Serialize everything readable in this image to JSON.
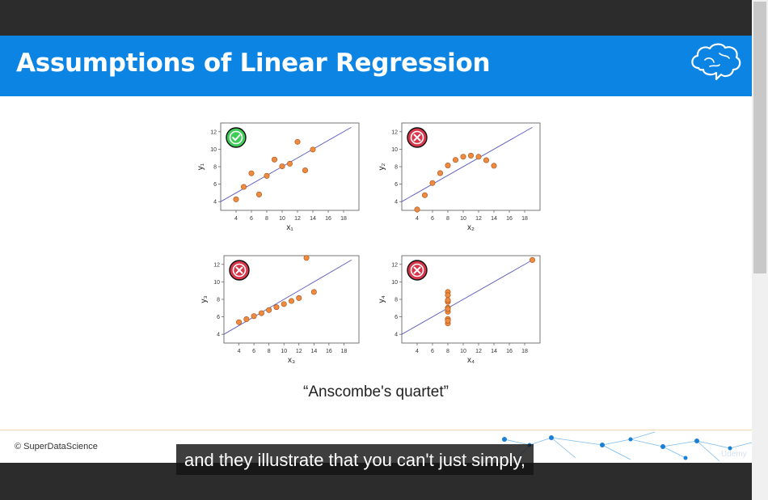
{
  "slide": {
    "title": "Assumptions of Linear Regression",
    "caption": "“Anscombe's quartet”",
    "copyright": "© SuperDataScience"
  },
  "video": {
    "subtitle": "and they illustrate that you can't just simply,",
    "watermark": "Udemy"
  },
  "colors": {
    "accent": "#0b84e3",
    "point": "#f08a3c",
    "fit": "#5c5cc0",
    "ok": "#3dcc55",
    "bad": "#d9364a"
  },
  "chart_data": [
    {
      "type": "scatter",
      "status": "check-icon",
      "xlabel": "x1",
      "ylabel": "y1",
      "xticks": [
        4,
        6,
        8,
        10,
        12,
        14,
        16,
        18
      ],
      "yticks": [
        4,
        6,
        8,
        10,
        12
      ],
      "xlim": [
        2,
        20
      ],
      "ylim": [
        3,
        13
      ],
      "fit": [
        [
          2,
          4.0
        ],
        [
          19,
          12.5
        ]
      ],
      "points": [
        [
          4,
          4.26
        ],
        [
          5,
          5.68
        ],
        [
          6,
          7.24
        ],
        [
          7,
          4.82
        ],
        [
          8,
          6.95
        ],
        [
          9,
          8.81
        ],
        [
          10,
          8.04
        ],
        [
          11,
          8.33
        ],
        [
          12,
          10.84
        ],
        [
          13,
          7.58
        ],
        [
          14,
          9.96
        ]
      ]
    },
    {
      "type": "scatter",
      "status": "cross-icon",
      "xlabel": "x2",
      "ylabel": "y2",
      "xticks": [
        4,
        6,
        8,
        10,
        12,
        14,
        16,
        18
      ],
      "yticks": [
        4,
        6,
        8,
        10,
        12
      ],
      "xlim": [
        2,
        20
      ],
      "ylim": [
        3,
        13
      ],
      "fit": [
        [
          2,
          4.0
        ],
        [
          19,
          12.5
        ]
      ],
      "points": [
        [
          4,
          3.1
        ],
        [
          5,
          4.74
        ],
        [
          6,
          6.13
        ],
        [
          7,
          7.26
        ],
        [
          8,
          8.14
        ],
        [
          9,
          8.77
        ],
        [
          10,
          9.14
        ],
        [
          11,
          9.26
        ],
        [
          12,
          9.13
        ],
        [
          13,
          8.74
        ],
        [
          14,
          8.1
        ]
      ]
    },
    {
      "type": "scatter",
      "status": "cross-icon",
      "xlabel": "x3",
      "ylabel": "y3",
      "xticks": [
        4,
        6,
        8,
        10,
        12,
        14,
        16,
        18
      ],
      "yticks": [
        4,
        6,
        8,
        10,
        12
      ],
      "xlim": [
        2,
        20
      ],
      "ylim": [
        3,
        13
      ],
      "fit": [
        [
          2,
          4.0
        ],
        [
          19,
          12.5
        ]
      ],
      "points": [
        [
          4,
          5.39
        ],
        [
          5,
          5.73
        ],
        [
          6,
          6.08
        ],
        [
          7,
          6.42
        ],
        [
          8,
          6.77
        ],
        [
          9,
          7.11
        ],
        [
          10,
          7.46
        ],
        [
          11,
          7.81
        ],
        [
          12,
          8.15
        ],
        [
          13,
          12.74
        ],
        [
          14,
          8.84
        ]
      ]
    },
    {
      "type": "scatter",
      "status": "cross-icon",
      "xlabel": "x4",
      "ylabel": "y4",
      "xticks": [
        4,
        6,
        8,
        10,
        12,
        14,
        16,
        18
      ],
      "yticks": [
        4,
        6,
        8,
        10,
        12
      ],
      "xlim": [
        2,
        20
      ],
      "ylim": [
        3,
        13
      ],
      "fit": [
        [
          2,
          4.0
        ],
        [
          19,
          12.5
        ]
      ],
      "points": [
        [
          8,
          6.58
        ],
        [
          8,
          5.76
        ],
        [
          8,
          7.71
        ],
        [
          8,
          8.84
        ],
        [
          8,
          8.47
        ],
        [
          8,
          7.04
        ],
        [
          8,
          5.25
        ],
        [
          19,
          12.5
        ],
        [
          8,
          5.56
        ],
        [
          8,
          7.91
        ],
        [
          8,
          6.89
        ]
      ]
    }
  ]
}
